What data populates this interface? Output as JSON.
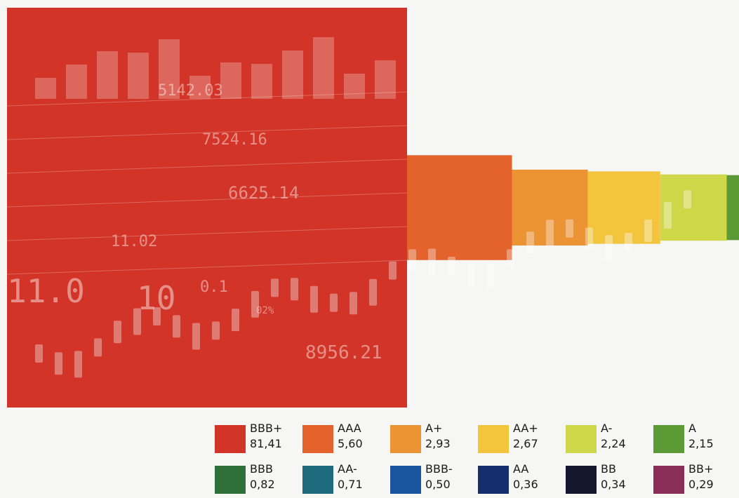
{
  "chart_data": {
    "type": "area",
    "subtype": "proportional-squares",
    "title": "",
    "xlabel": "",
    "ylabel": "",
    "grid": false,
    "legend_position": "bottom",
    "series": [
      {
        "name": "BBB+",
        "value": "81,41",
        "numeric": 81.41,
        "color": "#d23427"
      },
      {
        "name": "AAA",
        "value": "5,60",
        "numeric": 5.6,
        "color": "#e4622c"
      },
      {
        "name": "A+",
        "value": "2,93",
        "numeric": 2.93,
        "color": "#ec9333"
      },
      {
        "name": "AA+",
        "value": "2,67",
        "numeric": 2.67,
        "color": "#f3c53c"
      },
      {
        "name": "A-",
        "value": "2,24",
        "numeric": 2.24,
        "color": "#cfd848"
      },
      {
        "name": "A",
        "value": "2,15",
        "numeric": 2.15,
        "color": "#5b9a35"
      },
      {
        "name": "BBB",
        "value": "0,82",
        "numeric": 0.82,
        "color": "#2f6f38"
      },
      {
        "name": "AA-",
        "value": "0,71",
        "numeric": 0.71,
        "color": "#1f6a7c"
      },
      {
        "name": "BBB-",
        "value": "0,50",
        "numeric": 0.5,
        "color": "#1a55a0"
      },
      {
        "name": "AA",
        "value": "0,36",
        "numeric": 0.36,
        "color": "#152f6c"
      },
      {
        "name": "BB",
        "value": "0,34",
        "numeric": 0.34,
        "color": "#14182e"
      },
      {
        "name": "BB+",
        "value": "0,29",
        "numeric": 0.29,
        "color": "#8a2e58"
      }
    ],
    "background_figures": [
      "5142.03",
      "7524.16",
      "6625.14",
      "11.02",
      "8956.21",
      "11.0",
      "10",
      "0.1",
      "02%"
    ]
  }
}
